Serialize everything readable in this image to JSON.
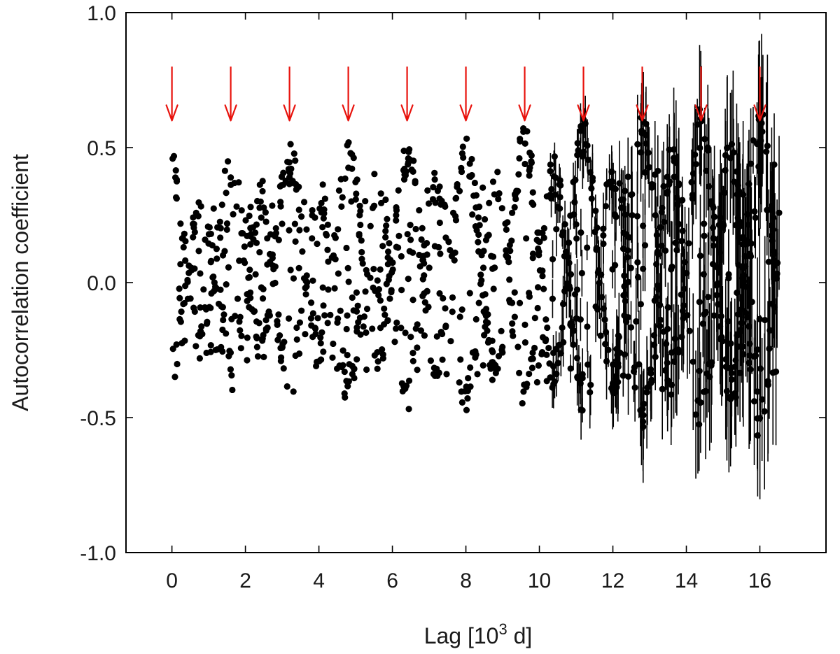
{
  "chart_data": {
    "type": "scatter",
    "title": "",
    "xlabel_main": "Lag [10",
    "xlabel_sup": "3",
    "xlabel_tail": " d]",
    "ylabel": "Autocorrelation coefficient",
    "xlim": [
      -1.25,
      17.8
    ],
    "ylim": [
      -1.0,
      1.0
    ],
    "grid": false,
    "xticks": [
      0,
      2,
      4,
      6,
      8,
      10,
      12,
      14,
      16
    ],
    "xtick_labels": [
      "0",
      "2",
      "4",
      "6",
      "8",
      "10",
      "12",
      "14",
      "16"
    ],
    "yticks": [
      -1.0,
      -0.5,
      0.0,
      0.5,
      1.0
    ],
    "ytick_labels": [
      "-1.0",
      "-0.5",
      "0.0",
      "0.5",
      "1.0"
    ],
    "marker_color": "#000000",
    "arrow_color": "#e8120c",
    "arrows": {
      "x": [
        0,
        1.6,
        3.2,
        4.8,
        6.4,
        8.0,
        9.6,
        11.2,
        12.8,
        14.4,
        16.0
      ],
      "y_top": 0.8,
      "y_tip": 0.6
    },
    "series": [
      {
        "points_x_range": [
          0,
          16.55
        ],
        "n_points": 1300,
        "period": 1.6,
        "amplitude_start": 0.3,
        "amplitude_growth": 0.2,
        "error_bars_start_x": 10.3,
        "error_max": 0.25
      }
    ]
  }
}
